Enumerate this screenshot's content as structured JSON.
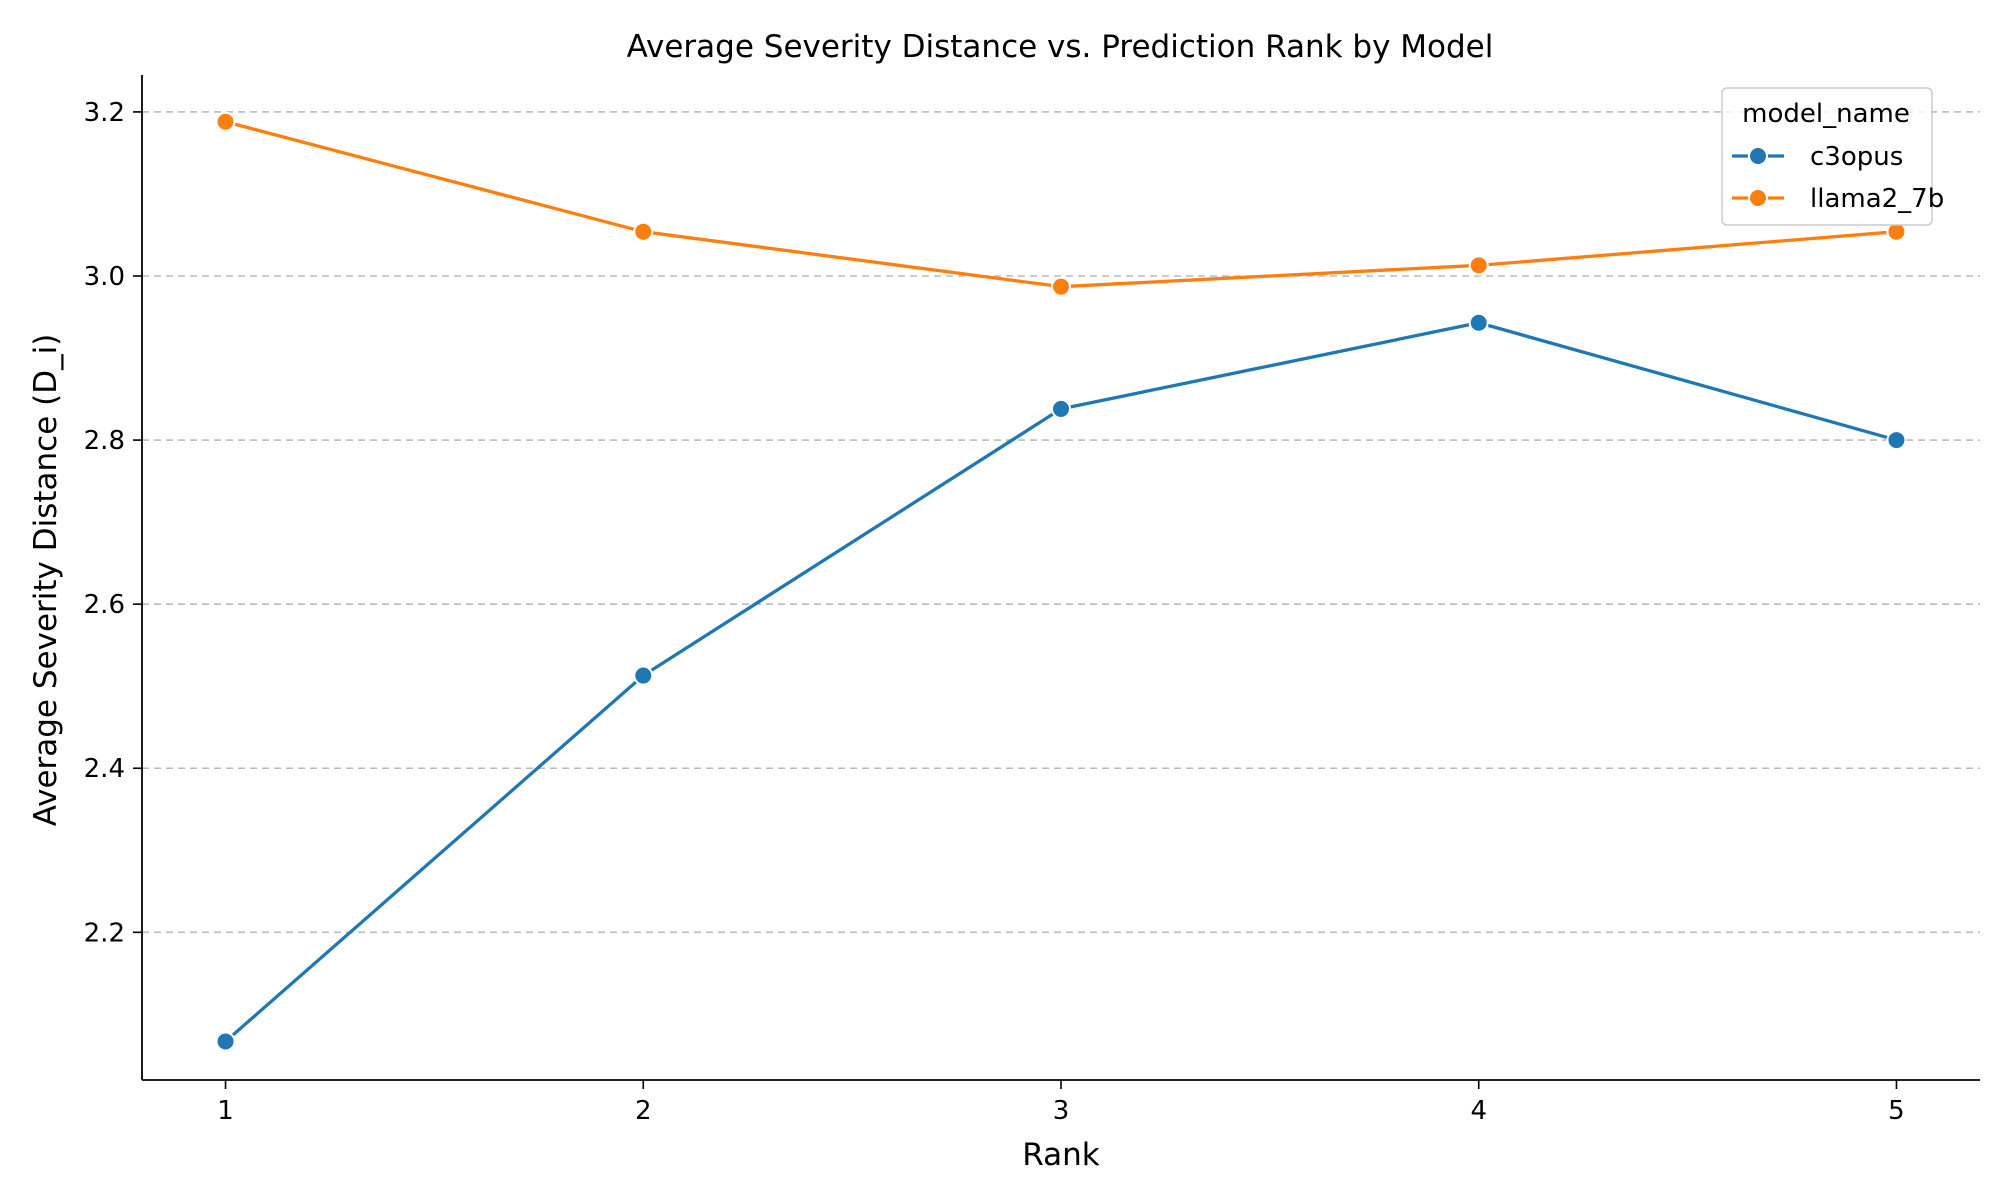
{
  "chart_data": {
    "type": "line",
    "title": "Average Severity Distance vs. Prediction Rank by Model",
    "xlabel": "Rank",
    "ylabel": "Average Severity Distance (D_i)",
    "x": [
      1,
      2,
      3,
      4,
      5
    ],
    "xticks": [
      "1",
      "2",
      "3",
      "4",
      "5"
    ],
    "yticks": [
      "2.2",
      "2.4",
      "2.6",
      "2.8",
      "3.0",
      "3.2"
    ],
    "ytick_values": [
      2.2,
      2.4,
      2.6,
      2.8,
      3.0,
      3.2
    ],
    "xlim": [
      0.8,
      5.2
    ],
    "ylim": [
      2.02,
      3.245
    ],
    "grid": "horizontal dashed",
    "legend": {
      "title": "model_name",
      "placement": "top-right"
    },
    "series": [
      {
        "name": "c3opus",
        "color": "#1f77b4",
        "values": [
          2.067,
          2.513,
          2.838,
          2.943,
          2.8
        ]
      },
      {
        "name": "llama2_7b",
        "color": "#ff7f0e",
        "values": [
          3.188,
          3.054,
          2.987,
          3.013,
          3.054
        ]
      }
    ]
  }
}
